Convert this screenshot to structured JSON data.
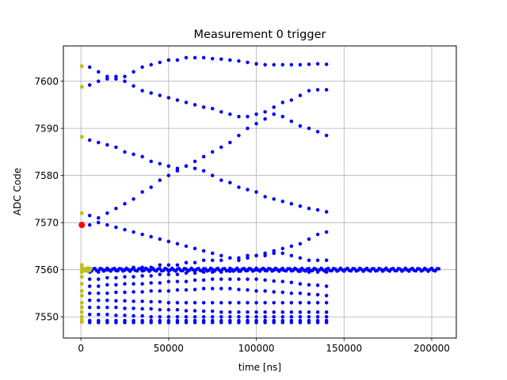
{
  "chart_data": {
    "type": "scatter",
    "title": "Measurement 0 trigger",
    "xlabel": "time [ns]",
    "ylabel": "ADC Code",
    "xlim": [
      -10000,
      214000
    ],
    "ylim": [
      7545.5,
      7607.5
    ],
    "xticks": [
      0,
      50000,
      100000,
      150000,
      200000
    ],
    "xtick_labels": [
      "0",
      "50000",
      "100000",
      "150000",
      "200000"
    ],
    "yticks": [
      7550,
      7560,
      7570,
      7580,
      7590,
      7600
    ],
    "ytick_labels": [
      "7550",
      "7560",
      "7570",
      "7580",
      "7590",
      "7600"
    ],
    "grid": true,
    "colors": {
      "main": "#0000ff",
      "pretrigger": "#bfbf1f",
      "trigger": "#ff0000"
    },
    "series": [
      {
        "role": "main",
        "traces": [
          {
            "x_start": 5000,
            "x_step": 5000,
            "y": [
              7603,
              7602,
              7601,
              7600.5,
              7601,
              7602,
              7603,
              7603.5,
              7604,
              7604.5,
              7604.5,
              7605,
              7605,
              7605,
              7604.8,
              7604.7,
              7604.5,
              7604.3,
              7604,
              7603.7,
              7603.5,
              7603.5,
              7603.5,
              7603.5,
              7603.5,
              7603.6,
              7603.7,
              7603.6
            ]
          },
          {
            "x_start": 5000,
            "x_step": 5000,
            "y": [
              7599.2,
              7600,
              7600.5,
              7601,
              7600,
              7599,
              7598,
              7597.5,
              7597,
              7596.5,
              7596,
              7595.5,
              7595,
              7594.5,
              7594.2,
              7593.5,
              7593,
              7592.5,
              7592.5,
              7593,
              7593.5,
              7594.5,
              7595.5,
              7596,
              7597,
              7598,
              7598.2,
              7598.2
            ]
          },
          {
            "x_start": 5000,
            "x_step": 5000,
            "y": [
              7587.5,
              7587,
              7586.5,
              7586,
              7585,
              7584.5,
              7584,
              7583,
              7582.5,
              7582,
              7581.5,
              7582,
              7583,
              7584,
              7585,
              7586,
              7587,
              7588.5,
              7590,
              7591,
              7592,
              7593,
              7592.5,
              7591.5,
              7590.5,
              7590,
              7589.3,
              7588.5
            ]
          },
          {
            "x_start": 5000,
            "x_step": 5000,
            "y": [
              7571.5,
              7571,
              7572,
              7573,
              7574,
              7575,
              7576.5,
              7577.5,
              7579,
              7580,
              7581,
              7582,
              7581.5,
              7581,
              7580,
              7579,
              7578.5,
              7577.5,
              7577,
              7576.5,
              7575.5,
              7575,
              7574.5,
              7574,
              7573.5,
              7573,
              7572.7,
              7572.3
            ]
          },
          {
            "x_start": 5000,
            "x_step": 5000,
            "y": [
              7569.5,
              7570,
              7569.5,
              7569,
              7568.5,
              7568,
              7567.5,
              7567,
              7566.5,
              7566,
              7565.5,
              7565,
              7564.5,
              7564,
              7563.5,
              7563,
              7562.5,
              7562,
              7562.5,
              7563,
              7563.5,
              7564,
              7564.5,
              7565,
              7565.5,
              7566.5,
              7567.5,
              7568
            ]
          },
          {
            "x_start": 5000,
            "x_step": 5000,
            "y": [
              7559.5,
              7559.5,
              7560,
              7560,
              7560,
              7560.5,
              7560.5,
              7560.5,
              7561,
              7561,
              7561,
              7561.5,
              7561.5,
              7562,
              7562,
              7562,
              7562.5,
              7562.5,
              7563,
              7563,
              7563,
              7563.5,
              7563.5,
              7563,
              7562.5,
              7562,
              7562,
              7562
            ]
          },
          {
            "x_start": 5000,
            "x_step": 5000,
            "y": [
              7558,
              7558,
              7558.3,
              7558.3,
              7558.5,
              7558.5,
              7558.7,
              7558.7,
              7559,
              7559,
              7559,
              7559.3,
              7559.3,
              7559.5,
              7559.5,
              7559.5,
              7559.7,
              7559.7,
              7560,
              7560,
              7560,
              7560,
              7560,
              7560,
              7559.7,
              7559.5,
              7559.5,
              7559.5
            ]
          },
          {
            "x_start": 5000,
            "x_step": 5000,
            "y": [
              7556.5,
              7556.5,
              7556.8,
              7556.8,
              7557,
              7557,
              7557,
              7557.2,
              7557.2,
              7557.5,
              7557.5,
              7557.5,
              7557.8,
              7557.8,
              7558,
              7558,
              7558,
              7558,
              7558,
              7558,
              7557.8,
              7557.6,
              7557.5,
              7557.3,
              7557,
              7556.8,
              7556.7,
              7556.5
            ]
          },
          {
            "x_start": 5000,
            "x_step": 5000,
            "y": [
              7555,
              7555,
              7555,
              7555.2,
              7555.2,
              7555.3,
              7555.3,
              7555.5,
              7555.5,
              7555.5,
              7555.7,
              7555.7,
              7555.8,
              7556,
              7556,
              7556,
              7556,
              7555.8,
              7555.7,
              7555.5,
              7555.5,
              7555.3,
              7555.2,
              7555,
              7555,
              7554.8,
              7554.7,
              7554.5
            ]
          },
          {
            "x_start": 5000,
            "x_step": 5000,
            "y": [
              7553.5,
              7553.5,
              7553.5,
              7553.4,
              7553.4,
              7553.3,
              7553.3,
              7553.2,
              7553.2,
              7553,
              7553,
              7553,
              7553,
              7553,
              7553,
              7553,
              7553,
              7553,
              7553,
              7553,
              7553,
              7553,
              7553,
              7553,
              7553,
              7553,
              7553,
              7553
            ]
          },
          {
            "x_start": 5000,
            "x_step": 5000,
            "y": [
              7552,
              7552,
              7552,
              7552,
              7551.8,
              7551.8,
              7551.7,
              7551.7,
              7551.5,
              7551.5,
              7551.5,
              7551.3,
              7551.3,
              7551.2,
              7551.2,
              7551,
              7551,
              7551,
              7551,
              7551,
              7551,
              7551,
              7551,
              7551,
              7551,
              7551,
              7551,
              7551
            ]
          },
          {
            "x_start": 5000,
            "x_step": 5000,
            "y": [
              7550.5,
              7550.5,
              7550.5,
              7550.3,
              7550.3,
              7550.2,
              7550.2,
              7550,
              7550,
              7550,
              7550,
              7550,
              7550,
              7550,
              7550,
              7550,
              7550,
              7550,
              7550,
              7550,
              7550,
              7550,
              7550,
              7550,
              7550,
              7550,
              7550,
              7550
            ]
          },
          {
            "x_start": 5000,
            "x_step": 5000,
            "y": [
              7549.2,
              7549.2,
              7549.2,
              7549.2,
              7549.2,
              7549.2,
              7549.2,
              7549.2,
              7549.2,
              7549.2,
              7549.2,
              7549.2,
              7549.2,
              7549.2,
              7549.2,
              7549.2,
              7549.2,
              7549.2,
              7549.2,
              7549.2,
              7549.2,
              7549.2,
              7549.2,
              7549.2,
              7549.2,
              7549.2,
              7549.2,
              7549.2
            ]
          },
          {
            "x_start": 5000,
            "x_step": 5000,
            "y": [
              7548.8,
              7548.8,
              7548.8,
              7548.8,
              7548.8,
              7548.8,
              7548.8,
              7548.8,
              7548.8,
              7548.8,
              7548.8,
              7548.8,
              7548.8,
              7548.8,
              7548.8,
              7548.8,
              7548.8,
              7548.8,
              7548.8,
              7548.8,
              7548.8,
              7548.8,
              7548.8,
              7548.8,
              7548.8,
              7548.8,
              7548.8,
              7548.8
            ]
          }
        ],
        "baseline": {
          "x_start": 3000,
          "x_end": 204000,
          "x_step": 1000,
          "y_center": 7560,
          "y_spread": 0.6
        },
        "markersize": 4.5
      },
      {
        "role": "pretrigger",
        "points": [
          [
            500,
            7603.2
          ],
          [
            500,
            7598.8
          ],
          [
            500,
            7588.2
          ],
          [
            500,
            7572
          ],
          [
            500,
            7561
          ],
          [
            500,
            7560.5
          ],
          [
            500,
            7560
          ],
          [
            500,
            7559.5
          ],
          [
            500,
            7558.5
          ],
          [
            500,
            7557
          ],
          [
            500,
            7555.5
          ],
          [
            500,
            7554.5
          ],
          [
            500,
            7553
          ],
          [
            500,
            7552
          ],
          [
            500,
            7551
          ],
          [
            500,
            7550
          ],
          [
            500,
            7549.3
          ],
          [
            500,
            7548.9
          ],
          [
            1500,
            7560.2
          ],
          [
            2500,
            7559.8
          ],
          [
            3500,
            7560.3
          ],
          [
            4000,
            7559.7
          ],
          [
            4500,
            7560.1
          ],
          [
            5000,
            7559.9
          ],
          [
            5500,
            7560.2
          ]
        ],
        "markersize": 5
      },
      {
        "role": "trigger",
        "points": [
          [
            500,
            7569.5
          ]
        ],
        "markersize": 8
      }
    ]
  }
}
